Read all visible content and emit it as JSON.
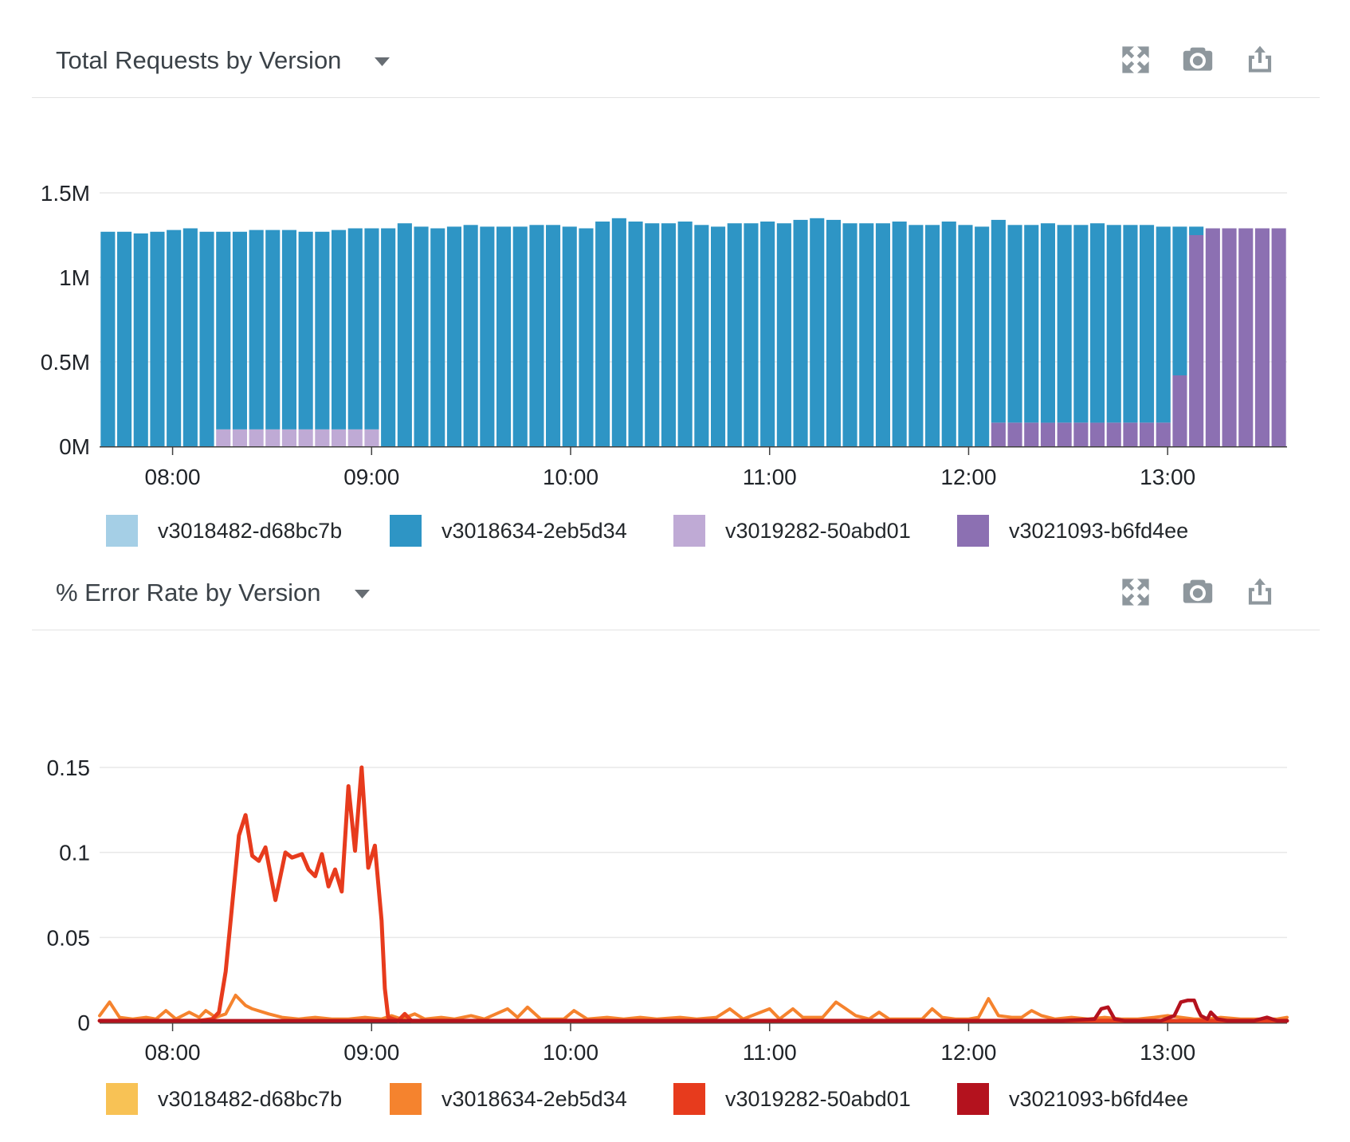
{
  "page": {
    "background": "#ffffff"
  },
  "panels": [
    {
      "title": "Total Requests by Version",
      "icons": [
        "chevron-down",
        "expand",
        "camera",
        "share"
      ]
    },
    {
      "title": "% Error Rate by Version",
      "icons": [
        "chevron-down",
        "expand",
        "camera",
        "share"
      ]
    }
  ],
  "chart_data": [
    {
      "type": "bar",
      "stacked": true,
      "title": "Total Requests by Version",
      "value_unit": "requests (millions)",
      "ylim": [
        0,
        1.5
      ],
      "y_ticks": [
        {
          "value": 0,
          "label": "0M"
        },
        {
          "value": 0.5,
          "label": "0.5M"
        },
        {
          "value": 1,
          "label": "1M"
        },
        {
          "value": 1.5,
          "label": "1.5M"
        }
      ],
      "x_range_minutes": [
        0,
        358
      ],
      "interval_minutes": 5,
      "x_ticks": [
        {
          "minutes": 22,
          "label": "08:00"
        },
        {
          "minutes": 82,
          "label": "09:00"
        },
        {
          "minutes": 142,
          "label": "10:00"
        },
        {
          "minutes": 202,
          "label": "11:00"
        },
        {
          "minutes": 262,
          "label": "12:00"
        },
        {
          "minutes": 322,
          "label": "13:00"
        }
      ],
      "grid": true,
      "legend_position": "bottom",
      "stack_order_bottom_to_top": [
        "v3021093-b6fd4ee",
        "v3019282-50abd01",
        "v3018634-2eb5d34",
        "v3018482-d68bc7b"
      ],
      "series": [
        {
          "name": "v3018482-d68bc7b",
          "color": "#a5cfe6",
          "values": [
            0,
            0,
            0,
            0,
            0,
            0,
            0,
            0,
            0,
            0,
            0,
            0,
            0,
            0,
            0,
            0,
            0,
            0,
            0,
            0,
            0,
            0,
            0,
            0,
            0,
            0,
            0,
            0,
            0,
            0,
            0,
            0,
            0,
            0,
            0,
            0,
            0,
            0,
            0,
            0,
            0,
            0,
            0,
            0,
            0,
            0,
            0,
            0,
            0,
            0,
            0,
            0,
            0,
            0,
            0,
            0,
            0,
            0,
            0,
            0,
            0,
            0,
            0,
            0,
            0,
            0,
            0,
            0,
            0,
            0,
            0,
            0
          ]
        },
        {
          "name": "v3018634-2eb5d34",
          "color": "#2e95c5",
          "values": [
            1.27,
            1.27,
            1.26,
            1.27,
            1.28,
            1.29,
            1.27,
            1.17,
            1.17,
            1.18,
            1.18,
            1.18,
            1.17,
            1.17,
            1.18,
            1.19,
            1.19,
            1.29,
            1.32,
            1.3,
            1.29,
            1.3,
            1.31,
            1.3,
            1.3,
            1.3,
            1.31,
            1.31,
            1.3,
            1.29,
            1.33,
            1.35,
            1.33,
            1.32,
            1.32,
            1.33,
            1.31,
            1.3,
            1.32,
            1.32,
            1.33,
            1.32,
            1.34,
            1.35,
            1.34,
            1.32,
            1.32,
            1.32,
            1.33,
            1.31,
            1.31,
            1.33,
            1.31,
            1.3,
            1.2,
            1.17,
            1.17,
            1.18,
            1.17,
            1.17,
            1.18,
            1.17,
            1.17,
            1.17,
            1.16,
            0.88,
            0.05,
            0,
            0,
            0,
            0,
            0
          ]
        },
        {
          "name": "v3019282-50abd01",
          "color": "#bfaad5",
          "values": [
            0,
            0,
            0,
            0,
            0,
            0,
            0,
            0.1,
            0.1,
            0.1,
            0.1,
            0.1,
            0.1,
            0.1,
            0.1,
            0.1,
            0.1,
            0,
            0,
            0,
            0,
            0,
            0,
            0,
            0,
            0,
            0,
            0,
            0,
            0,
            0,
            0,
            0,
            0,
            0,
            0,
            0,
            0,
            0,
            0,
            0,
            0,
            0,
            0,
            0,
            0,
            0,
            0,
            0,
            0,
            0,
            0,
            0,
            0,
            0,
            0,
            0,
            0,
            0,
            0,
            0,
            0,
            0,
            0,
            0,
            0,
            0,
            0,
            0,
            0,
            0,
            0
          ]
        },
        {
          "name": "v3021093-b6fd4ee",
          "color": "#8c70b2",
          "values": [
            0,
            0,
            0,
            0,
            0,
            0,
            0,
            0,
            0,
            0,
            0,
            0,
            0,
            0,
            0,
            0,
            0,
            0,
            0,
            0,
            0,
            0,
            0,
            0,
            0,
            0,
            0,
            0,
            0,
            0,
            0,
            0,
            0,
            0,
            0,
            0,
            0,
            0,
            0,
            0,
            0,
            0,
            0,
            0,
            0,
            0,
            0,
            0,
            0,
            0,
            0,
            0,
            0,
            0,
            0.14,
            0.14,
            0.14,
            0.14,
            0.14,
            0.14,
            0.14,
            0.14,
            0.14,
            0.14,
            0.14,
            0.42,
            1.25,
            1.29,
            1.29,
            1.29,
            1.29,
            1.29
          ]
        }
      ]
    },
    {
      "type": "line",
      "title": "% Error Rate by Version",
      "value_unit": "error rate fraction",
      "ylim": [
        0,
        0.15
      ],
      "y_ticks": [
        {
          "value": 0,
          "label": "0"
        },
        {
          "value": 0.05,
          "label": "0.05"
        },
        {
          "value": 0.1,
          "label": "0.1"
        },
        {
          "value": 0.15,
          "label": "0.15"
        }
      ],
      "x_range_minutes": [
        0,
        358
      ],
      "x_ticks": [
        {
          "minutes": 22,
          "label": "08:00"
        },
        {
          "minutes": 82,
          "label": "09:00"
        },
        {
          "minutes": 142,
          "label": "10:00"
        },
        {
          "minutes": 202,
          "label": "11:00"
        },
        {
          "minutes": 262,
          "label": "12:00"
        },
        {
          "minutes": 322,
          "label": "13:00"
        }
      ],
      "grid": true,
      "legend_position": "bottom",
      "series": [
        {
          "name": "v3018482-d68bc7b",
          "color": "#f8c255",
          "points": [
            [
              0,
              0.001
            ],
            [
              358,
              0.001
            ]
          ]
        },
        {
          "name": "v3018634-2eb5d34",
          "color": "#f5832e",
          "points": [
            [
              0,
              0.004
            ],
            [
              3,
              0.012
            ],
            [
              6,
              0.003
            ],
            [
              10,
              0.002
            ],
            [
              14,
              0.003
            ],
            [
              17,
              0.002
            ],
            [
              20,
              0.007
            ],
            [
              23,
              0.002
            ],
            [
              27,
              0.006
            ],
            [
              30,
              0.003
            ],
            [
              32,
              0.007
            ],
            [
              35,
              0.003
            ],
            [
              38,
              0.005
            ],
            [
              41,
              0.016
            ],
            [
              44,
              0.01
            ],
            [
              46,
              0.008
            ],
            [
              51,
              0.005
            ],
            [
              55,
              0.003
            ],
            [
              60,
              0.002
            ],
            [
              65,
              0.003
            ],
            [
              70,
              0.002
            ],
            [
              75,
              0.002
            ],
            [
              80,
              0.003
            ],
            [
              85,
              0.002
            ],
            [
              88,
              0.004
            ],
            [
              91,
              0.002
            ],
            [
              95,
              0.005
            ],
            [
              98,
              0.002
            ],
            [
              103,
              0.003
            ],
            [
              107,
              0.002
            ],
            [
              112,
              0.004
            ],
            [
              116,
              0.002
            ],
            [
              123,
              0.008
            ],
            [
              126,
              0.003
            ],
            [
              129,
              0.009
            ],
            [
              133,
              0.002
            ],
            [
              140,
              0.002
            ],
            [
              143,
              0.007
            ],
            [
              147,
              0.002
            ],
            [
              153,
              0.003
            ],
            [
              158,
              0.002
            ],
            [
              163,
              0.003
            ],
            [
              168,
              0.002
            ],
            [
              175,
              0.003
            ],
            [
              180,
              0.002
            ],
            [
              186,
              0.003
            ],
            [
              190,
              0.008
            ],
            [
              194,
              0.002
            ],
            [
              202,
              0.008
            ],
            [
              205,
              0.002
            ],
            [
              209,
              0.008
            ],
            [
              212,
              0.003
            ],
            [
              218,
              0.003
            ],
            [
              222,
              0.012
            ],
            [
              225,
              0.008
            ],
            [
              228,
              0.004
            ],
            [
              232,
              0.002
            ],
            [
              235,
              0.006
            ],
            [
              238,
              0.002
            ],
            [
              244,
              0.002
            ],
            [
              248,
              0.002
            ],
            [
              251,
              0.008
            ],
            [
              254,
              0.003
            ],
            [
              258,
              0.002
            ],
            [
              262,
              0.002
            ],
            [
              265,
              0.003
            ],
            [
              268,
              0.014
            ],
            [
              271,
              0.004
            ],
            [
              275,
              0.003
            ],
            [
              278,
              0.003
            ],
            [
              281,
              0.007
            ],
            [
              284,
              0.004
            ],
            [
              288,
              0.002
            ],
            [
              293,
              0.003
            ],
            [
              298,
              0.002
            ],
            [
              303,
              0.003
            ],
            [
              308,
              0.002
            ],
            [
              313,
              0.002
            ],
            [
              318,
              0.003
            ],
            [
              322,
              0.004
            ],
            [
              326,
              0.003
            ],
            [
              330,
              0.002
            ],
            [
              334,
              0.002
            ],
            [
              338,
              0.003
            ],
            [
              344,
              0.002
            ],
            [
              350,
              0.002
            ],
            [
              355,
              0.002
            ],
            [
              358,
              0.003
            ]
          ]
        },
        {
          "name": "v3019282-50abd01",
          "color": "#e73b1d",
          "points": [
            [
              0,
              0.001
            ],
            [
              30,
              0.001
            ],
            [
              34,
              0.002
            ],
            [
              36,
              0.006
            ],
            [
              38,
              0.03
            ],
            [
              40,
              0.07
            ],
            [
              42,
              0.11
            ],
            [
              44,
              0.122
            ],
            [
              46,
              0.098
            ],
            [
              48,
              0.095
            ],
            [
              50,
              0.103
            ],
            [
              53,
              0.072
            ],
            [
              56,
              0.1
            ],
            [
              58,
              0.097
            ],
            [
              61,
              0.099
            ],
            [
              63,
              0.09
            ],
            [
              65,
              0.086
            ],
            [
              67,
              0.099
            ],
            [
              69,
              0.08
            ],
            [
              71,
              0.09
            ],
            [
              73,
              0.077
            ],
            [
              75,
              0.139
            ],
            [
              77,
              0.101
            ],
            [
              79,
              0.15
            ],
            [
              81,
              0.091
            ],
            [
              83,
              0.104
            ],
            [
              85,
              0.06
            ],
            [
              86,
              0.02
            ],
            [
              87,
              0.003
            ],
            [
              90,
              0.001
            ],
            [
              92,
              0.005
            ],
            [
              94,
              0.001
            ],
            [
              120,
              0.001
            ],
            [
              180,
              0.001
            ],
            [
              240,
              0.001
            ],
            [
              300,
              0.001
            ],
            [
              358,
              0.001
            ]
          ]
        },
        {
          "name": "v3021093-b6fd4ee",
          "color": "#b4121e",
          "points": [
            [
              0,
              0.001
            ],
            [
              290,
              0.001
            ],
            [
              300,
              0.002
            ],
            [
              302,
              0.008
            ],
            [
              304,
              0.009
            ],
            [
              306,
              0.002
            ],
            [
              309,
              0.001
            ],
            [
              320,
              0.001
            ],
            [
              324,
              0.004
            ],
            [
              326,
              0.012
            ],
            [
              328,
              0.013
            ],
            [
              330,
              0.013
            ],
            [
              331,
              0.008
            ],
            [
              332,
              0.004
            ],
            [
              334,
              0.002
            ],
            [
              335,
              0.006
            ],
            [
              337,
              0.002
            ],
            [
              340,
              0.001
            ],
            [
              348,
              0.001
            ],
            [
              352,
              0.003
            ],
            [
              355,
              0.001
            ],
            [
              358,
              0.001
            ]
          ]
        }
      ]
    }
  ]
}
